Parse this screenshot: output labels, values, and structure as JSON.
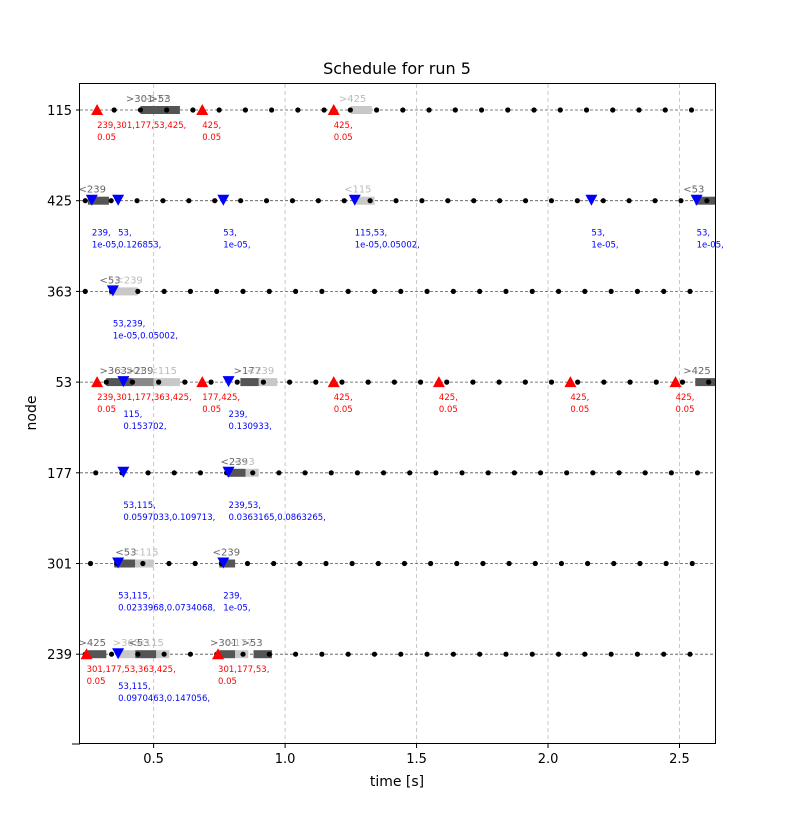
{
  "chart_data": {
    "type": "scatter",
    "title": "Schedule for run 5",
    "xlabel": "time [s]",
    "ylabel": "node",
    "xlim": [
      0.22,
      2.635
    ],
    "x_ticks": [
      0.5,
      1.0,
      1.5,
      2.0,
      2.5
    ],
    "x_tick_labels": [
      "0.5",
      "1.0",
      "1.5",
      "2.0",
      "2.5"
    ],
    "grid": "vertical",
    "nodes": [
      "115",
      "425",
      "363",
      "53",
      "177",
      "301",
      "239"
    ],
    "colors": {
      "tx": "#ff0000",
      "rx": "#0000ff",
      "dot": "#000000",
      "bar_dark": "#555555",
      "bar_mid": "#888888",
      "bar_light": "#c8c8c8"
    },
    "dots": [
      {
        "node": "115",
        "x0": 0.35,
        "step": 0.0998,
        "count": 24
      },
      {
        "node": "425",
        "x0": 0.24,
        "step": 0.0985,
        "count": 25
      },
      {
        "node": "363",
        "x0": 0.24,
        "step": 0.1,
        "count": 25
      },
      {
        "node": "53",
        "x0": 0.32,
        "step": 0.0996,
        "count": 24
      },
      {
        "node": "177",
        "x0": 0.28,
        "step": 0.0995,
        "count": 24
      },
      {
        "node": "301",
        "x0": 0.26,
        "step": 0.0995,
        "count": 25
      },
      {
        "node": "239",
        "x0": 0.24,
        "step": 0.1,
        "count": 25
      }
    ],
    "bars": [
      {
        "node": "115",
        "x0": 0.45,
        "x1": 0.6,
        "shade": "dark"
      },
      {
        "node": "115",
        "x0": 1.25,
        "x1": 1.33,
        "shade": "light"
      },
      {
        "node": "425",
        "x0": 0.25,
        "x1": 0.33,
        "shade": "dark"
      },
      {
        "node": "425",
        "x0": 1.27,
        "x1": 1.34,
        "shade": "light"
      },
      {
        "node": "425",
        "x0": 2.56,
        "x1": 2.635,
        "shade": "dark"
      },
      {
        "node": "363",
        "x0": 0.33,
        "x1": 0.44,
        "shade": "light"
      },
      {
        "node": "53",
        "x0": 0.32,
        "x1": 0.42,
        "shade": "dark"
      },
      {
        "node": "53",
        "x0": 0.42,
        "x1": 0.5,
        "shade": "mid"
      },
      {
        "node": "53",
        "x0": 0.5,
        "x1": 0.6,
        "shade": "light"
      },
      {
        "node": "53",
        "x0": 0.83,
        "x1": 0.9,
        "shade": "dark"
      },
      {
        "node": "53",
        "x0": 0.9,
        "x1": 0.97,
        "shade": "light"
      },
      {
        "node": "53",
        "x0": 2.56,
        "x1": 2.64,
        "shade": "dark"
      },
      {
        "node": "177",
        "x0": 0.78,
        "x1": 0.85,
        "shade": "dark"
      },
      {
        "node": "177",
        "x0": 0.85,
        "x1": 0.9,
        "shade": "light"
      },
      {
        "node": "301",
        "x0": 0.35,
        "x1": 0.43,
        "shade": "dark"
      },
      {
        "node": "301",
        "x0": 0.43,
        "x1": 0.5,
        "shade": "light"
      },
      {
        "node": "301",
        "x0": 0.75,
        "x1": 0.81,
        "shade": "dark"
      },
      {
        "node": "239",
        "x0": 0.25,
        "x1": 0.32,
        "shade": "dark"
      },
      {
        "node": "239",
        "x0": 0.37,
        "x1": 0.43,
        "shade": "light"
      },
      {
        "node": "239",
        "x0": 0.43,
        "x1": 0.51,
        "shade": "dark"
      },
      {
        "node": "239",
        "x0": 0.51,
        "x1": 0.56,
        "shade": "light"
      },
      {
        "node": "239",
        "x0": 0.75,
        "x1": 0.81,
        "shade": "dark"
      },
      {
        "node": "239",
        "x0": 0.81,
        "x1": 0.86,
        "shade": "light"
      },
      {
        "node": "239",
        "x0": 0.88,
        "x1": 0.95,
        "shade": "dark"
      }
    ],
    "tags": [
      {
        "node": "115",
        "x": 0.44,
        "label": ">301",
        "shade": "dark"
      },
      {
        "node": "115",
        "x": 0.5,
        "label": ">177",
        "shade": "light"
      },
      {
        "node": "115",
        "x": 0.53,
        "label": ">53",
        "shade": "dark"
      },
      {
        "node": "115",
        "x": 1.25,
        "label": ">425",
        "shade": "light"
      },
      {
        "node": "425",
        "x": 0.26,
        "label": "<239",
        "shade": "dark"
      },
      {
        "node": "425",
        "x": 1.27,
        "label": "<115",
        "shade": "light"
      },
      {
        "node": "425",
        "x": 2.56,
        "label": "<53",
        "shade": "dark"
      },
      {
        "node": "363",
        "x": 0.34,
        "label": "<53",
        "shade": "dark"
      },
      {
        "node": "363",
        "x": 0.4,
        "label": "<239",
        "shade": "light"
      },
      {
        "node": "53",
        "x": 0.34,
        "label": ">363",
        "shade": "dark"
      },
      {
        "node": "53",
        "x": 0.41,
        "label": ">301",
        "shade": "light"
      },
      {
        "node": "53",
        "x": 0.44,
        "label": ">239",
        "shade": "dark"
      },
      {
        "node": "53",
        "x": 0.53,
        "label": "<115",
        "shade": "light"
      },
      {
        "node": "53",
        "x": 0.85,
        "label": ">177",
        "shade": "dark"
      },
      {
        "node": "53",
        "x": 0.9,
        "label": "<239",
        "shade": "light"
      },
      {
        "node": "53",
        "x": 2.56,
        "label": ">425",
        "shade": "dark"
      },
      {
        "node": "177",
        "x": 0.8,
        "label": "<239",
        "shade": "dark"
      },
      {
        "node": "177",
        "x": 0.85,
        "label": "<53",
        "shade": "light"
      },
      {
        "node": "301",
        "x": 0.4,
        "label": "<53",
        "shade": "dark"
      },
      {
        "node": "301",
        "x": 0.46,
        "label": "<115",
        "shade": "light"
      },
      {
        "node": "301",
        "x": 0.77,
        "label": "<239",
        "shade": "dark"
      },
      {
        "node": "239",
        "x": 0.26,
        "label": ">425",
        "shade": "dark"
      },
      {
        "node": "239",
        "x": 0.39,
        "label": ">363",
        "shade": "light"
      },
      {
        "node": "239",
        "x": 0.45,
        "label": "<53",
        "shade": "dark"
      },
      {
        "node": "239",
        "x": 0.48,
        "label": "<115",
        "shade": "light"
      },
      {
        "node": "239",
        "x": 0.76,
        "label": ">301",
        "shade": "dark"
      },
      {
        "node": "239",
        "x": 0.82,
        "label": ">177",
        "shade": "light"
      },
      {
        "node": "239",
        "x": 0.88,
        "label": ">53",
        "shade": "dark"
      }
    ],
    "transmissions": [
      {
        "node": "115",
        "x": 0.285,
        "lines": [
          "239,301,177,53,425,",
          "0.05"
        ]
      },
      {
        "node": "115",
        "x": 0.685,
        "lines": [
          "425,",
          "0.05"
        ]
      },
      {
        "node": "115",
        "x": 1.185,
        "lines": [
          "425,",
          "0.05"
        ]
      },
      {
        "node": "53",
        "x": 0.285,
        "lines": [
          "239,301,177,363,425,",
          "0.05"
        ]
      },
      {
        "node": "53",
        "x": 0.685,
        "lines": [
          "177,425,",
          "0.05"
        ]
      },
      {
        "node": "53",
        "x": 1.185,
        "lines": [
          "425,",
          "0.05"
        ]
      },
      {
        "node": "53",
        "x": 1.585,
        "lines": [
          "425,",
          "0.05"
        ]
      },
      {
        "node": "53",
        "x": 2.085,
        "lines": [
          "425,",
          "0.05"
        ]
      },
      {
        "node": "53",
        "x": 2.485,
        "lines": [
          "425,",
          "0.05"
        ]
      },
      {
        "node": "239",
        "x": 0.245,
        "lines": [
          "301,177,53,363,425,",
          "0.05"
        ]
      },
      {
        "node": "239",
        "x": 0.745,
        "lines": [
          "301,177,53,",
          "0.05"
        ]
      }
    ],
    "receptions": [
      {
        "node": "425",
        "x": 0.265,
        "lines": [
          "239,",
          "1e-05,"
        ]
      },
      {
        "node": "425",
        "x": 0.365,
        "lines": [
          "53,",
          "0.126853,"
        ]
      },
      {
        "node": "425",
        "x": 0.765,
        "lines": [
          "53,",
          "1e-05,"
        ]
      },
      {
        "node": "425",
        "x": 1.265,
        "lines": [
          "115,53,",
          "1e-05,0.05002,"
        ]
      },
      {
        "node": "425",
        "x": 2.165,
        "lines": [
          "53,",
          "1e-05,"
        ]
      },
      {
        "node": "425",
        "x": 2.565,
        "lines": [
          "53,",
          "1e-05,"
        ]
      },
      {
        "node": "363",
        "x": 0.345,
        "lines": [
          "53,239,",
          "1e-05,0.05002,"
        ]
      },
      {
        "node": "53",
        "x": 0.385,
        "lines": [
          "115,",
          "0.153702,"
        ]
      },
      {
        "node": "53",
        "x": 0.785,
        "lines": [
          "239,",
          "0.130933,"
        ]
      },
      {
        "node": "177",
        "x": 0.385,
        "lines": [
          "53,115,",
          "0.0597033,0.109713,"
        ]
      },
      {
        "node": "177",
        "x": 0.785,
        "lines": [
          "239,53,",
          "0.0363165,0.0863265,"
        ]
      },
      {
        "node": "301",
        "x": 0.365,
        "lines": [
          "53,115,",
          "0.0233968,0.0734068,"
        ]
      },
      {
        "node": "301",
        "x": 0.765,
        "lines": [
          "239,",
          "1e-05,"
        ]
      },
      {
        "node": "239",
        "x": 0.365,
        "lines": [
          "53,115,",
          "0.0970463,0.147056,"
        ]
      }
    ]
  }
}
